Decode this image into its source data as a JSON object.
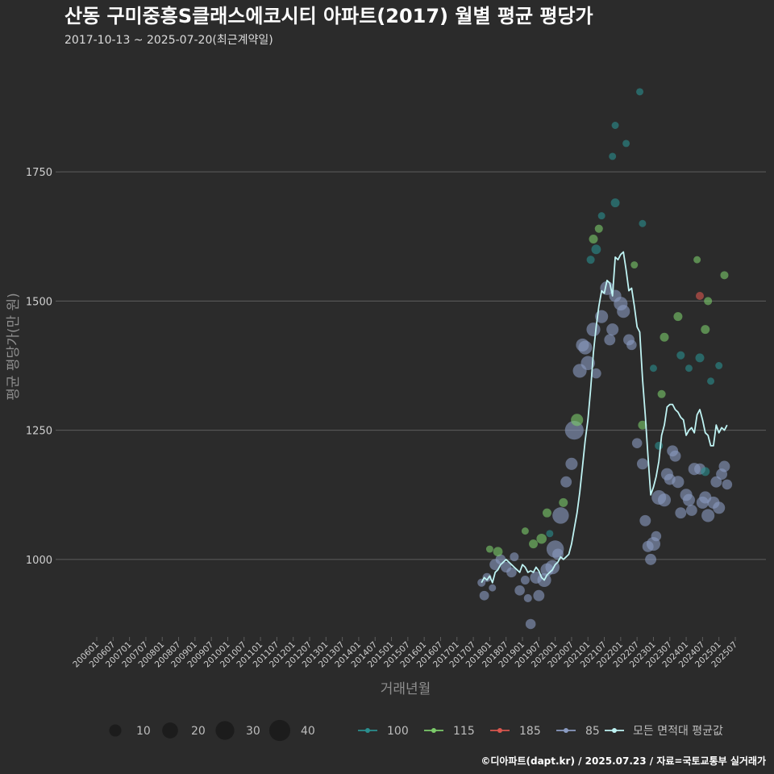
{
  "colors": {
    "background": "#2b2b2b",
    "grid": "#5e5e5e",
    "avg_line": "#bff3f3",
    "s100": "#2a8f8f",
    "s115": "#7ccb6a",
    "s185": "#d9564e",
    "s85": "#8a9bc2",
    "size_legend": "#1c1c1c"
  },
  "chart_data": {
    "type": "scatter",
    "title": "산동 구미중흥S클래스에코시티 아파트(2017) 월별 평균 평당가",
    "subtitle": "2017-10-13 ~ 2025-07-20(최근계약일)",
    "xlabel": "거래년월",
    "ylabel": "평균 평당가(만 원)",
    "x_range": [
      "2006-01",
      "2025-07"
    ],
    "ylim": [
      850,
      1950
    ],
    "yticks": [
      1000,
      1250,
      1500,
      1750
    ],
    "xticks": [
      "200601",
      "200607",
      "200701",
      "200707",
      "200801",
      "200807",
      "200901",
      "200907",
      "201001",
      "201007",
      "201101",
      "201107",
      "201201",
      "201207",
      "201301",
      "201307",
      "201401",
      "201407",
      "201501",
      "201507",
      "201601",
      "201607",
      "201701",
      "201707",
      "201801",
      "201807",
      "201901",
      "201907",
      "202001",
      "202007",
      "202101",
      "202107",
      "202201",
      "202207",
      "202301",
      "202307",
      "202401",
      "202407",
      "202501",
      "202507"
    ],
    "size_legend": [
      10,
      20,
      30,
      40
    ],
    "series_legend": [
      {
        "name": "100",
        "color_key": "s100"
      },
      {
        "name": "115",
        "color_key": "s115"
      },
      {
        "name": "185",
        "color_key": "s185"
      },
      {
        "name": "85",
        "color_key": "s85"
      }
    ],
    "avg_label": "모든 면적대 평균값",
    "avg_line": [
      {
        "x": "2017-10",
        "y": 955
      },
      {
        "x": "2017-11",
        "y": 965
      },
      {
        "x": "2017-12",
        "y": 960
      },
      {
        "x": "2018-01",
        "y": 968
      },
      {
        "x": "2018-02",
        "y": 955
      },
      {
        "x": "2018-03",
        "y": 975
      },
      {
        "x": "2018-04",
        "y": 980
      },
      {
        "x": "2018-05",
        "y": 990
      },
      {
        "x": "2018-06",
        "y": 995
      },
      {
        "x": "2018-07",
        "y": 1000
      },
      {
        "x": "2018-08",
        "y": 995
      },
      {
        "x": "2018-09",
        "y": 990
      },
      {
        "x": "2018-10",
        "y": 985
      },
      {
        "x": "2018-11",
        "y": 980
      },
      {
        "x": "2018-12",
        "y": 975
      },
      {
        "x": "2019-01",
        "y": 990
      },
      {
        "x": "2019-02",
        "y": 985
      },
      {
        "x": "2019-03",
        "y": 975
      },
      {
        "x": "2019-04",
        "y": 978
      },
      {
        "x": "2019-05",
        "y": 975
      },
      {
        "x": "2019-06",
        "y": 985
      },
      {
        "x": "2019-07",
        "y": 978
      },
      {
        "x": "2019-08",
        "y": 965
      },
      {
        "x": "2019-09",
        "y": 960
      },
      {
        "x": "2019-10",
        "y": 970
      },
      {
        "x": "2019-11",
        "y": 975
      },
      {
        "x": "2019-12",
        "y": 980
      },
      {
        "x": "2020-01",
        "y": 990
      },
      {
        "x": "2020-02",
        "y": 995
      },
      {
        "x": "2020-03",
        "y": 1005
      },
      {
        "x": "2020-04",
        "y": 1000
      },
      {
        "x": "2020-05",
        "y": 1005
      },
      {
        "x": "2020-06",
        "y": 1010
      },
      {
        "x": "2020-07",
        "y": 1030
      },
      {
        "x": "2020-08",
        "y": 1060
      },
      {
        "x": "2020-09",
        "y": 1090
      },
      {
        "x": "2020-10",
        "y": 1130
      },
      {
        "x": "2020-11",
        "y": 1180
      },
      {
        "x": "2020-12",
        "y": 1230
      },
      {
        "x": "2021-01",
        "y": 1270
      },
      {
        "x": "2021-02",
        "y": 1330
      },
      {
        "x": "2021-03",
        "y": 1400
      },
      {
        "x": "2021-04",
        "y": 1450
      },
      {
        "x": "2021-05",
        "y": 1490
      },
      {
        "x": "2021-06",
        "y": 1520
      },
      {
        "x": "2021-07",
        "y": 1515
      },
      {
        "x": "2021-08",
        "y": 1540
      },
      {
        "x": "2021-09",
        "y": 1535
      },
      {
        "x": "2021-10",
        "y": 1510
      },
      {
        "x": "2021-11",
        "y": 1585
      },
      {
        "x": "2021-12",
        "y": 1580
      },
      {
        "x": "2022-01",
        "y": 1590
      },
      {
        "x": "2022-02",
        "y": 1595
      },
      {
        "x": "2022-03",
        "y": 1560
      },
      {
        "x": "2022-04",
        "y": 1520
      },
      {
        "x": "2022-05",
        "y": 1525
      },
      {
        "x": "2022-06",
        "y": 1490
      },
      {
        "x": "2022-07",
        "y": 1450
      },
      {
        "x": "2022-08",
        "y": 1440
      },
      {
        "x": "2022-09",
        "y": 1350
      },
      {
        "x": "2022-10",
        "y": 1280
      },
      {
        "x": "2022-11",
        "y": 1200
      },
      {
        "x": "2022-12",
        "y": 1125
      },
      {
        "x": "2023-01",
        "y": 1140
      },
      {
        "x": "2023-02",
        "y": 1160
      },
      {
        "x": "2023-03",
        "y": 1190
      },
      {
        "x": "2023-04",
        "y": 1240
      },
      {
        "x": "2023-05",
        "y": 1260
      },
      {
        "x": "2023-06",
        "y": 1295
      },
      {
        "x": "2023-07",
        "y": 1300
      },
      {
        "x": "2023-08",
        "y": 1300
      },
      {
        "x": "2023-09",
        "y": 1290
      },
      {
        "x": "2023-10",
        "y": 1285
      },
      {
        "x": "2023-11",
        "y": 1275
      },
      {
        "x": "2023-12",
        "y": 1270
      },
      {
        "x": "2024-01",
        "y": 1240
      },
      {
        "x": "2024-02",
        "y": 1250
      },
      {
        "x": "2024-03",
        "y": 1255
      },
      {
        "x": "2024-04",
        "y": 1245
      },
      {
        "x": "2024-05",
        "y": 1280
      },
      {
        "x": "2024-06",
        "y": 1290
      },
      {
        "x": "2024-07",
        "y": 1270
      },
      {
        "x": "2024-08",
        "y": 1245
      },
      {
        "x": "2024-09",
        "y": 1240
      },
      {
        "x": "2024-10",
        "y": 1220
      },
      {
        "x": "2024-11",
        "y": 1220
      },
      {
        "x": "2024-12",
        "y": 1260
      },
      {
        "x": "2025-01",
        "y": 1245
      },
      {
        "x": "2025-02",
        "y": 1255
      },
      {
        "x": "2025-03",
        "y": 1250
      },
      {
        "x": "2025-04",
        "y": 1260
      }
    ],
    "points": [
      {
        "s": "85",
        "x": "2017-10",
        "y": 955,
        "n": 3
      },
      {
        "s": "85",
        "x": "2017-11",
        "y": 930,
        "n": 5
      },
      {
        "s": "85",
        "x": "2017-12",
        "y": 965,
        "n": 4
      },
      {
        "s": "85",
        "x": "2018-02",
        "y": 945,
        "n": 2
      },
      {
        "s": "85",
        "x": "2018-03",
        "y": 990,
        "n": 8
      },
      {
        "s": "85",
        "x": "2018-05",
        "y": 1000,
        "n": 6
      },
      {
        "s": "85",
        "x": "2018-07",
        "y": 985,
        "n": 7
      },
      {
        "s": "85",
        "x": "2018-09",
        "y": 975,
        "n": 6
      },
      {
        "s": "85",
        "x": "2018-10",
        "y": 1005,
        "n": 4
      },
      {
        "s": "85",
        "x": "2018-12",
        "y": 940,
        "n": 6
      },
      {
        "s": "85",
        "x": "2019-02",
        "y": 960,
        "n": 4
      },
      {
        "s": "85",
        "x": "2019-03",
        "y": 925,
        "n": 3
      },
      {
        "s": "85",
        "x": "2019-04",
        "y": 875,
        "n": 6
      },
      {
        "s": "85",
        "x": "2019-06",
        "y": 965,
        "n": 10
      },
      {
        "s": "85",
        "x": "2019-07",
        "y": 930,
        "n": 8
      },
      {
        "s": "85",
        "x": "2019-09",
        "y": 960,
        "n": 14
      },
      {
        "s": "85",
        "x": "2019-10",
        "y": 980,
        "n": 12
      },
      {
        "s": "85",
        "x": "2019-12",
        "y": 985,
        "n": 15
      },
      {
        "s": "85",
        "x": "2020-01",
        "y": 1020,
        "n": 25
      },
      {
        "s": "85",
        "x": "2020-02",
        "y": 1010,
        "n": 8
      },
      {
        "s": "85",
        "x": "2020-03",
        "y": 1085,
        "n": 22
      },
      {
        "s": "85",
        "x": "2020-05",
        "y": 1150,
        "n": 8
      },
      {
        "s": "85",
        "x": "2020-07",
        "y": 1185,
        "n": 10
      },
      {
        "s": "85",
        "x": "2020-08",
        "y": 1250,
        "n": 30
      },
      {
        "s": "85",
        "x": "2020-10",
        "y": 1365,
        "n": 14
      },
      {
        "s": "85",
        "x": "2020-11",
        "y": 1415,
        "n": 12
      },
      {
        "s": "85",
        "x": "2020-12",
        "y": 1410,
        "n": 14
      },
      {
        "s": "85",
        "x": "2021-01",
        "y": 1380,
        "n": 15
      },
      {
        "s": "85",
        "x": "2021-03",
        "y": 1445,
        "n": 14
      },
      {
        "s": "85",
        "x": "2021-04",
        "y": 1360,
        "n": 6
      },
      {
        "s": "85",
        "x": "2021-06",
        "y": 1470,
        "n": 12
      },
      {
        "s": "85",
        "x": "2021-08",
        "y": 1525,
        "n": 14
      },
      {
        "s": "85",
        "x": "2021-09",
        "y": 1425,
        "n": 8
      },
      {
        "s": "85",
        "x": "2021-10",
        "y": 1445,
        "n": 10
      },
      {
        "s": "85",
        "x": "2021-11",
        "y": 1510,
        "n": 10
      },
      {
        "s": "85",
        "x": "2022-01",
        "y": 1495,
        "n": 14
      },
      {
        "s": "85",
        "x": "2022-02",
        "y": 1480,
        "n": 12
      },
      {
        "s": "85",
        "x": "2022-04",
        "y": 1425,
        "n": 8
      },
      {
        "s": "85",
        "x": "2022-05",
        "y": 1415,
        "n": 6
      },
      {
        "s": "85",
        "x": "2022-07",
        "y": 1225,
        "n": 6
      },
      {
        "s": "85",
        "x": "2022-09",
        "y": 1185,
        "n": 8
      },
      {
        "s": "85",
        "x": "2022-10",
        "y": 1075,
        "n": 8
      },
      {
        "s": "85",
        "x": "2022-11",
        "y": 1025,
        "n": 8
      },
      {
        "s": "85",
        "x": "2022-12",
        "y": 1000,
        "n": 8
      },
      {
        "s": "85",
        "x": "2023-01",
        "y": 1030,
        "n": 14
      },
      {
        "s": "85",
        "x": "2023-02",
        "y": 1045,
        "n": 6
      },
      {
        "s": "85",
        "x": "2023-03",
        "y": 1120,
        "n": 16
      },
      {
        "s": "85",
        "x": "2023-05",
        "y": 1115,
        "n": 12
      },
      {
        "s": "85",
        "x": "2023-06",
        "y": 1165,
        "n": 10
      },
      {
        "s": "85",
        "x": "2023-07",
        "y": 1155,
        "n": 8
      },
      {
        "s": "85",
        "x": "2023-08",
        "y": 1210,
        "n": 8
      },
      {
        "s": "85",
        "x": "2023-09",
        "y": 1200,
        "n": 8
      },
      {
        "s": "85",
        "x": "2023-10",
        "y": 1150,
        "n": 10
      },
      {
        "s": "85",
        "x": "2023-11",
        "y": 1090,
        "n": 8
      },
      {
        "s": "85",
        "x": "2024-01",
        "y": 1125,
        "n": 10
      },
      {
        "s": "85",
        "x": "2024-02",
        "y": 1115,
        "n": 10
      },
      {
        "s": "85",
        "x": "2024-03",
        "y": 1095,
        "n": 8
      },
      {
        "s": "85",
        "x": "2024-04",
        "y": 1175,
        "n": 10
      },
      {
        "s": "85",
        "x": "2024-06",
        "y": 1175,
        "n": 8
      },
      {
        "s": "85",
        "x": "2024-07",
        "y": 1110,
        "n": 10
      },
      {
        "s": "85",
        "x": "2024-08",
        "y": 1120,
        "n": 10
      },
      {
        "s": "85",
        "x": "2024-09",
        "y": 1085,
        "n": 12
      },
      {
        "s": "85",
        "x": "2024-11",
        "y": 1110,
        "n": 10
      },
      {
        "s": "85",
        "x": "2024-12",
        "y": 1150,
        "n": 8
      },
      {
        "s": "85",
        "x": "2025-01",
        "y": 1100,
        "n": 10
      },
      {
        "s": "85",
        "x": "2025-02",
        "y": 1165,
        "n": 8
      },
      {
        "s": "85",
        "x": "2025-03",
        "y": 1180,
        "n": 8
      },
      {
        "s": "85",
        "x": "2025-04",
        "y": 1145,
        "n": 6
      },
      {
        "s": "115",
        "x": "2018-01",
        "y": 1020,
        "n": 2
      },
      {
        "s": "115",
        "x": "2018-04",
        "y": 1015,
        "n": 5
      },
      {
        "s": "115",
        "x": "2019-02",
        "y": 1055,
        "n": 2
      },
      {
        "s": "115",
        "x": "2019-05",
        "y": 1030,
        "n": 4
      },
      {
        "s": "115",
        "x": "2019-08",
        "y": 1040,
        "n": 6
      },
      {
        "s": "115",
        "x": "2019-10",
        "y": 1090,
        "n": 4
      },
      {
        "s": "115",
        "x": "2020-04",
        "y": 1110,
        "n": 4
      },
      {
        "s": "115",
        "x": "2020-09",
        "y": 1270,
        "n": 10
      },
      {
        "s": "115",
        "x": "2021-03",
        "y": 1620,
        "n": 4
      },
      {
        "s": "115",
        "x": "2021-05",
        "y": 1640,
        "n": 3
      },
      {
        "s": "115",
        "x": "2022-06",
        "y": 1570,
        "n": 2
      },
      {
        "s": "115",
        "x": "2022-09",
        "y": 1260,
        "n": 4
      },
      {
        "s": "115",
        "x": "2023-04",
        "y": 1320,
        "n": 3
      },
      {
        "s": "115",
        "x": "2023-05",
        "y": 1430,
        "n": 4
      },
      {
        "s": "115",
        "x": "2023-10",
        "y": 1470,
        "n": 4
      },
      {
        "s": "115",
        "x": "2024-08",
        "y": 1445,
        "n": 4
      },
      {
        "s": "115",
        "x": "2024-09",
        "y": 1500,
        "n": 3
      },
      {
        "s": "115",
        "x": "2025-03",
        "y": 1550,
        "n": 3
      },
      {
        "s": "115",
        "x": "2024-05",
        "y": 1580,
        "n": 2
      },
      {
        "s": "100",
        "x": "2019-11",
        "y": 1050,
        "n": 2
      },
      {
        "s": "100",
        "x": "2021-02",
        "y": 1580,
        "n": 3
      },
      {
        "s": "100",
        "x": "2021-04",
        "y": 1600,
        "n": 5
      },
      {
        "s": "100",
        "x": "2021-06",
        "y": 1665,
        "n": 2
      },
      {
        "s": "100",
        "x": "2021-10",
        "y": 1780,
        "n": 2
      },
      {
        "s": "100",
        "x": "2021-11",
        "y": 1690,
        "n": 4
      },
      {
        "s": "100",
        "x": "2022-03",
        "y": 1805,
        "n": 2
      },
      {
        "s": "100",
        "x": "2022-08",
        "y": 1905,
        "n": 2
      },
      {
        "s": "100",
        "x": "2022-09",
        "y": 1650,
        "n": 2
      },
      {
        "s": "100",
        "x": "2023-01",
        "y": 1370,
        "n": 2
      },
      {
        "s": "100",
        "x": "2023-03",
        "y": 1220,
        "n": 3
      },
      {
        "s": "100",
        "x": "2023-11",
        "y": 1395,
        "n": 3
      },
      {
        "s": "100",
        "x": "2024-02",
        "y": 1370,
        "n": 2
      },
      {
        "s": "100",
        "x": "2024-06",
        "y": 1390,
        "n": 4
      },
      {
        "s": "100",
        "x": "2024-08",
        "y": 1170,
        "n": 4
      },
      {
        "s": "100",
        "x": "2024-10",
        "y": 1345,
        "n": 2
      },
      {
        "s": "100",
        "x": "2025-01",
        "y": 1375,
        "n": 2
      },
      {
        "s": "100",
        "x": "2021-11",
        "y": 1840,
        "n": 2
      },
      {
        "s": "185",
        "x": "2024-06",
        "y": 1510,
        "n": 3
      }
    ]
  },
  "caption": "©디아파트(dapt.kr) / 2025.07.23 / 자료=국토교통부 실거래가"
}
